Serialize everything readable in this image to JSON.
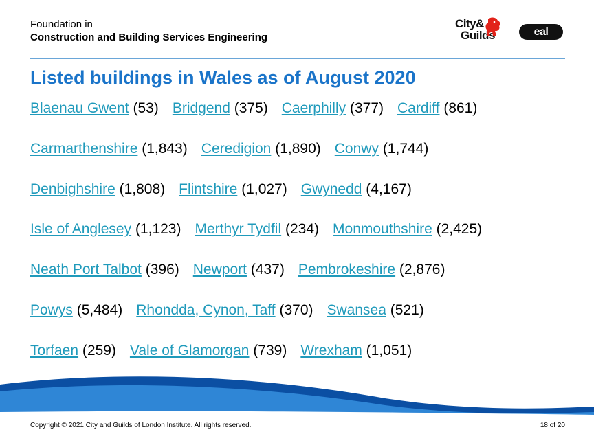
{
  "header": {
    "line1": "Foundation in",
    "line2": "Construction and Building Services Engineering"
  },
  "logos": {
    "cg_line1": "City&",
    "cg_line2": "Guilds",
    "eal": "eal"
  },
  "title": "Listed buildings in Wales as of August 2020",
  "rows": [
    [
      {
        "name": "Blaenau Gwent",
        "count": "(53)"
      },
      {
        "name": "Bridgend",
        "count": "(375)"
      },
      {
        "name": "Caerphilly",
        "count": "(377)"
      },
      {
        "name": "Cardiff",
        "count": "(861)"
      }
    ],
    [
      {
        "name": "Carmarthenshire",
        "count": "(1,843)"
      },
      {
        "name": "Ceredigion",
        "count": "(1,890)"
      },
      {
        "name": "Conwy",
        "count": "(1,744)"
      }
    ],
    [
      {
        "name": "Denbighshire",
        "count": "(1,808)"
      },
      {
        "name": "Flintshire",
        "count": "(1,027)"
      },
      {
        "name": "Gwynedd",
        "count": "(4,167)"
      }
    ],
    [
      {
        "name": "Isle of Anglesey",
        "count": "(1,123)"
      },
      {
        "name": "Merthyr Tydfil",
        "count": "(234)"
      },
      {
        "name": "Monmouthshire",
        "count": "(2,425)"
      }
    ],
    [
      {
        "name": "Neath Port Talbot",
        "count": "(396)"
      },
      {
        "name": "Newport",
        "count": "(437)"
      },
      {
        "name": "Pembrokeshire",
        "count": "(2,876)"
      }
    ],
    [
      {
        "name": "Powys",
        "count": "(5,484)"
      },
      {
        "name": "Rhondda, Cynon, Taff",
        "count": "(370)"
      },
      {
        "name": "Swansea",
        "count": "(521)"
      }
    ],
    [
      {
        "name": "Torfaen",
        "count": "(259)"
      },
      {
        "name": "Vale of Glamorgan",
        "count": "(739)"
      },
      {
        "name": "Wrexham",
        "count": "(1,051)"
      }
    ]
  ],
  "footer": {
    "copyright": "Copyright © 2021 City and Guilds of London Institute. All rights reserved.",
    "page": "18 of 20"
  },
  "colors": {
    "title": "#1a74c9",
    "link": "#1f9abb",
    "wave_dark": "#0b4fa3",
    "wave_light": "#2f86d6"
  }
}
